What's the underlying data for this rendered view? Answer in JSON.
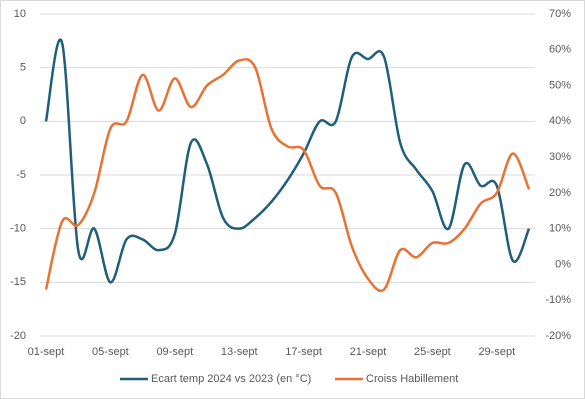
{
  "chart_data": {
    "type": "line",
    "categories": [
      "01-sept",
      null,
      null,
      null,
      "05-sept",
      null,
      null,
      null,
      "09-sept",
      null,
      null,
      null,
      "13-sept",
      null,
      null,
      null,
      "17-sept",
      null,
      null,
      null,
      "21-sept",
      null,
      null,
      null,
      "25-sept",
      null,
      null,
      null,
      "29-sept",
      null,
      null
    ],
    "series": [
      {
        "name": "Ecart temp 2024 vs 2023 (en °C)",
        "color": "#1f5f7a",
        "axis": "y",
        "values": [
          0,
          7.3,
          -12,
          -10,
          -15,
          -11,
          -11,
          -12,
          -10.5,
          -2,
          -4,
          -9,
          -10,
          -9,
          -7.5,
          -5.5,
          -3,
          0,
          0,
          6,
          5.8,
          6,
          -2,
          -4.5,
          -6.5,
          -10,
          -4,
          -6,
          -6,
          -13,
          -10
        ]
      },
      {
        "name": "Croiss Habillement",
        "color": "#e97132",
        "axis": "y2",
        "values": [
          -7,
          12,
          11,
          20,
          38,
          40,
          53,
          43,
          52,
          44,
          50,
          53,
          57,
          55,
          38,
          33,
          32,
          22,
          20,
          5,
          -4,
          -7,
          4,
          2,
          6,
          6,
          10,
          17,
          20,
          31,
          21
        ]
      }
    ],
    "ylim": [
      -20,
      10
    ],
    "yticks": [
      -20,
      -15,
      -10,
      -5,
      0,
      5,
      10
    ],
    "y2lim": [
      -20,
      70
    ],
    "y2ticks": [
      {
        "value": -20,
        "label": "-20%"
      },
      {
        "value": -10,
        "label": "-10%"
      },
      {
        "value": 0,
        "label": "0%"
      },
      {
        "value": 10,
        "label": "10%"
      },
      {
        "value": 20,
        "label": "20%"
      },
      {
        "value": 30,
        "label": "30%"
      },
      {
        "value": 40,
        "label": "40%"
      },
      {
        "value": 50,
        "label": "50%"
      },
      {
        "value": 60,
        "label": "60%"
      },
      {
        "value": 70,
        "label": "70%"
      }
    ],
    "grid": true,
    "legend": "bottom"
  }
}
